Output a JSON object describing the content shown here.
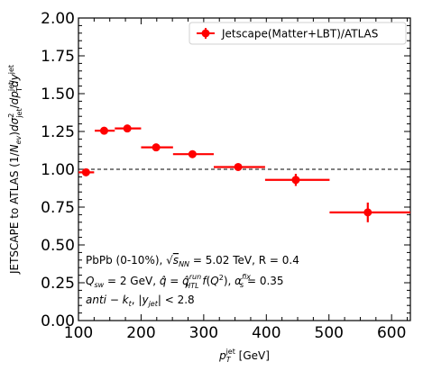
{
  "chart_data": {
    "type": "scatter",
    "xlabel": "p_T^jet [GeV]",
    "ylabel": "JETSCAPE to ATLAS (1/N_ev)dσ²_jet/dp_T^jet dy^jet",
    "xlim": [
      100,
      630
    ],
    "ylim": [
      0.0,
      2.0
    ],
    "x_ticks": [
      "100",
      "200",
      "300",
      "400",
      "500",
      "600"
    ],
    "y_ticks": [
      "0.00",
      "0.25",
      "0.50",
      "0.75",
      "1.00",
      "1.25",
      "1.50",
      "1.75",
      "2.00"
    ],
    "grid": false,
    "reference_line": 1.0,
    "legend_position": "top-right",
    "series": [
      {
        "name": "Jetscape(Matter+LBT)/ATLAS",
        "color": "#ff0000",
        "points": [
          {
            "x": 112,
            "y": 0.98,
            "xerr": [
              100,
              125
            ],
            "yerr": 0.02
          },
          {
            "x": 141,
            "y": 1.255,
            "xerr": [
              126,
              158
            ],
            "yerr": 0.02
          },
          {
            "x": 178,
            "y": 1.27,
            "xerr": [
              158,
              200
            ],
            "yerr": 0.02
          },
          {
            "x": 224,
            "y": 1.145,
            "xerr": [
              200,
              251
            ],
            "yerr": 0.02
          },
          {
            "x": 282,
            "y": 1.1,
            "xerr": [
              251,
              316
            ],
            "yerr": 0.02
          },
          {
            "x": 355,
            "y": 1.015,
            "xerr": [
              316,
              398
            ],
            "yerr": 0.02
          },
          {
            "x": 447,
            "y": 0.93,
            "xerr": [
              398,
              501
            ],
            "yerr": 0.04
          },
          {
            "x": 562,
            "y": 0.715,
            "xerr": [
              501,
              630
            ],
            "yerr": 0.065
          }
        ]
      }
    ],
    "annotations": [
      "PbPb (0-10%), √s_NN = 5.02 TeV, R = 0.4",
      "Q_sw = 2 GeV, q̂ = q̂_HTL^run f(Q²), α_s^fix = 0.35",
      "anti − k_t, |y_jet| < 2.8"
    ]
  }
}
